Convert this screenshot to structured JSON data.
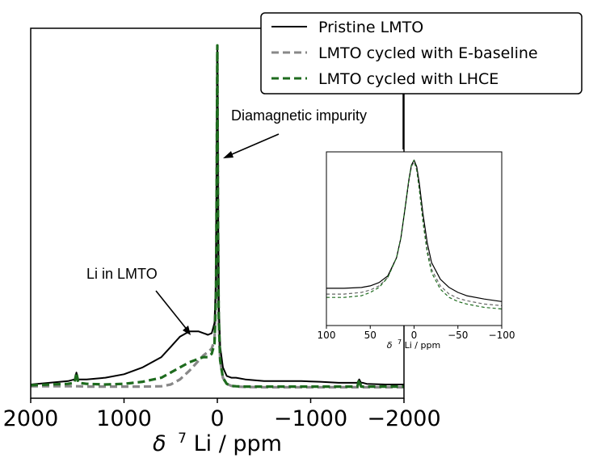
{
  "chart_data": [
    {
      "type": "line",
      "title": "",
      "xlabel": "δ ⁷Li / ppm",
      "xlabel_prefix": "δ",
      "xlabel_sup": "7",
      "xlabel_suffix": "Li / ppm",
      "ylabel": "",
      "xlim": [
        2000,
        -2000
      ],
      "ylim": [
        -0.03,
        1.05
      ],
      "x_reversed": true,
      "y_ticks_visible": false,
      "xticks": [
        2000,
        1000,
        0,
        -1000,
        -2000
      ],
      "xtick_labels": [
        "2000",
        "1000",
        "0",
        "−1000",
        "−2000"
      ],
      "grid": false,
      "legend_position": "top-right",
      "series": [
        {
          "name": "Pristine LMTO",
          "color": "#000000",
          "style": "solid",
          "x": [
            2000,
            1800,
            1600,
            1530,
            1510,
            1490,
            1400,
            1200,
            1000,
            800,
            600,
            500,
            400,
            300,
            200,
            150,
            100,
            60,
            30,
            15,
            8,
            3,
            0,
            -3,
            -8,
            -15,
            -30,
            -60,
            -100,
            -150,
            -200,
            -300,
            -500,
            -700,
            -900,
            -1100,
            -1300,
            -1500,
            -1520,
            -1540,
            -1560,
            -1600,
            -1800,
            -2000
          ],
          "y": [
            0.01,
            0.015,
            0.02,
            0.025,
            0.045,
            0.025,
            0.025,
            0.03,
            0.04,
            0.06,
            0.09,
            0.12,
            0.15,
            0.165,
            0.165,
            0.16,
            0.155,
            0.16,
            0.19,
            0.32,
            0.6,
            0.88,
            1.0,
            0.82,
            0.5,
            0.25,
            0.12,
            0.06,
            0.035,
            0.03,
            0.03,
            0.025,
            0.02,
            0.02,
            0.02,
            0.018,
            0.015,
            0.015,
            0.025,
            0.015,
            0.015,
            0.012,
            0.01,
            0.01
          ]
        },
        {
          "name": "LMTO cycled with E-baseline",
          "color": "#888888",
          "style": "dashed",
          "x": [
            2000,
            1800,
            1600,
            1530,
            1510,
            1490,
            1400,
            1200,
            1000,
            800,
            600,
            500,
            400,
            300,
            200,
            150,
            100,
            60,
            30,
            15,
            8,
            3,
            0,
            -3,
            -8,
            -15,
            -30,
            -60,
            -100,
            -150,
            -200,
            -300,
            -500,
            -700,
            -900,
            -1100,
            -1300,
            -1500,
            -1520,
            -1540,
            -1560,
            -1600,
            -1800,
            -2000
          ],
          "y": [
            0.005,
            0.005,
            0.005,
            0.005,
            0.005,
            0.005,
            0.004,
            0.004,
            0.004,
            0.004,
            0.005,
            0.01,
            0.025,
            0.05,
            0.08,
            0.095,
            0.105,
            0.115,
            0.14,
            0.27,
            0.55,
            0.85,
            0.98,
            0.8,
            0.45,
            0.2,
            0.08,
            0.03,
            0.012,
            0.006,
            0.004,
            0.003,
            0.002,
            0.002,
            0.002,
            0.002,
            0.002,
            0.002,
            0.002,
            0.002,
            0.002,
            0.002,
            0.002,
            0.002
          ]
        },
        {
          "name": "LMTO cycled with LHCE",
          "color": "#1e6b1e",
          "style": "dashed",
          "x": [
            2000,
            1800,
            1600,
            1530,
            1510,
            1490,
            1400,
            1200,
            1000,
            800,
            600,
            500,
            400,
            300,
            200,
            150,
            100,
            60,
            30,
            15,
            8,
            3,
            0,
            -3,
            -8,
            -15,
            -30,
            -60,
            -100,
            -150,
            -200,
            -300,
            -500,
            -700,
            -900,
            -1100,
            -1300,
            -1500,
            -1520,
            -1540,
            -1560,
            -1600,
            -1800,
            -2000
          ],
          "y": [
            0.008,
            0.01,
            0.012,
            0.015,
            0.045,
            0.015,
            0.012,
            0.01,
            0.012,
            0.018,
            0.03,
            0.045,
            0.06,
            0.075,
            0.085,
            0.09,
            0.09,
            0.1,
            0.13,
            0.27,
            0.56,
            0.87,
            1.0,
            0.81,
            0.47,
            0.21,
            0.08,
            0.03,
            0.012,
            0.006,
            0.005,
            0.004,
            0.004,
            0.004,
            0.004,
            0.004,
            0.004,
            0.004,
            0.025,
            0.004,
            0.004,
            0.004,
            0.004,
            0.004
          ]
        }
      ],
      "annotations": [
        {
          "text": "Diamagnetic impurity",
          "xy": [
            0,
            0.62
          ],
          "xytext_label": "Diamagnetic impurity"
        },
        {
          "text": "Li in LMTO",
          "xy": [
            300,
            0.16
          ],
          "xytext_label": "Li in LMTO"
        }
      ]
    },
    {
      "type": "line",
      "title": "",
      "inset": true,
      "xlabel": "δ ⁷Li / ppm",
      "xlabel_prefix": "δ",
      "xlabel_sup": "7",
      "xlabel_suffix": "Li / ppm",
      "xlim": [
        100,
        -100
      ],
      "ylim": [
        0,
        1.05
      ],
      "x_reversed": true,
      "xticks": [
        100,
        50,
        0,
        -50,
        -100
      ],
      "xtick_labels": [
        "100",
        "50",
        "0",
        "−50",
        "−100"
      ],
      "y_ticks_visible": false,
      "series": [
        {
          "name": "Pristine LMTO",
          "color": "#000000",
          "style": "solid",
          "x": [
            100,
            80,
            60,
            50,
            40,
            30,
            20,
            15,
            10,
            6,
            3,
            0,
            -3,
            -6,
            -10,
            -15,
            -20,
            -30,
            -40,
            -50,
            -60,
            -80,
            -100
          ],
          "y": [
            0.225,
            0.225,
            0.23,
            0.24,
            0.26,
            0.3,
            0.41,
            0.53,
            0.72,
            0.88,
            0.97,
            1.0,
            0.96,
            0.86,
            0.68,
            0.5,
            0.38,
            0.28,
            0.23,
            0.2,
            0.18,
            0.16,
            0.145
          ]
        },
        {
          "name": "LMTO cycled with E-baseline",
          "color": "#666666",
          "style": "dashed",
          "x": [
            100,
            80,
            60,
            50,
            40,
            30,
            20,
            15,
            10,
            6,
            3,
            0,
            -3,
            -6,
            -10,
            -15,
            -20,
            -30,
            -40,
            -50,
            -60,
            -80,
            -100
          ],
          "y": [
            0.19,
            0.19,
            0.2,
            0.215,
            0.24,
            0.29,
            0.41,
            0.53,
            0.71,
            0.87,
            0.96,
            0.99,
            0.94,
            0.83,
            0.65,
            0.46,
            0.34,
            0.24,
            0.19,
            0.165,
            0.15,
            0.13,
            0.12
          ]
        },
        {
          "name": "LMTO cycled with LHCE",
          "color": "#1e6b1e",
          "style": "dashed",
          "x": [
            100,
            80,
            60,
            50,
            40,
            30,
            20,
            15,
            10,
            6,
            3,
            0,
            -3,
            -6,
            -10,
            -15,
            -20,
            -30,
            -40,
            -50,
            -60,
            -80,
            -100
          ],
          "y": [
            0.17,
            0.17,
            0.18,
            0.2,
            0.23,
            0.29,
            0.41,
            0.53,
            0.72,
            0.88,
            0.97,
            1.0,
            0.94,
            0.82,
            0.63,
            0.44,
            0.32,
            0.22,
            0.17,
            0.145,
            0.13,
            0.11,
            0.1
          ]
        }
      ]
    }
  ]
}
